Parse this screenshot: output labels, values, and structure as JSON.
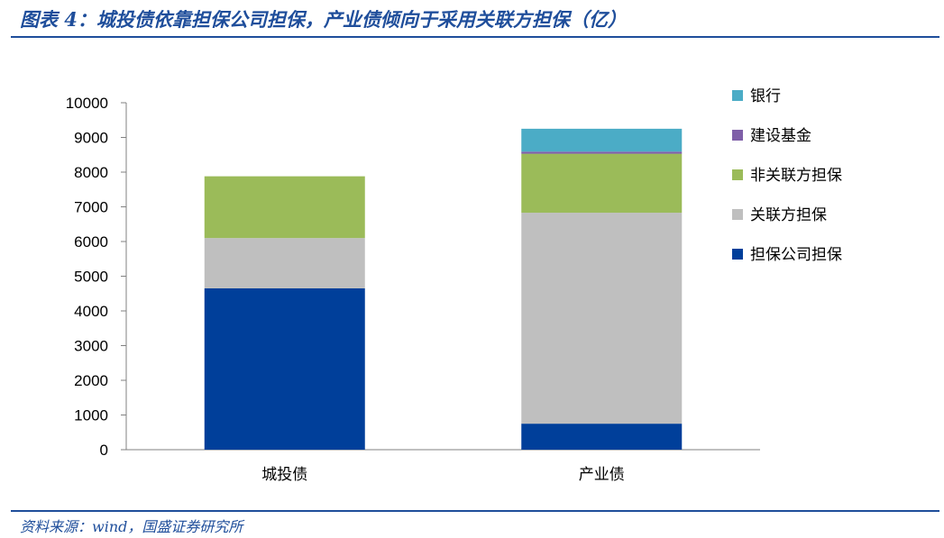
{
  "figure_title": "图表 4：城投债依靠担保公司担保，产业债倾向于采用关联方担保（亿）",
  "source_note": "资料来源：wind，国盛证券研究所",
  "chart_data": {
    "type": "bar",
    "stacked": true,
    "categories": [
      "城投债",
      "产业债"
    ],
    "ylim": [
      0,
      10000
    ],
    "yticks": [
      0,
      1000,
      2000,
      3000,
      4000,
      5000,
      6000,
      7000,
      8000,
      9000,
      10000
    ],
    "legend_position": "right",
    "grid": false,
    "series": [
      {
        "name": "担保公司担保",
        "color": "#003f9a",
        "values": [
          4650,
          750
        ]
      },
      {
        "name": "关联方担保",
        "color": "#bfbfbf",
        "values": [
          1450,
          6080
        ]
      },
      {
        "name": "非关联方担保",
        "color": "#9bbb59",
        "values": [
          1780,
          1700
        ]
      },
      {
        "name": "建设基金",
        "color": "#7f5fa8",
        "values": [
          0,
          60
        ]
      },
      {
        "name": "银行",
        "color": "#4bacc6",
        "values": [
          0,
          660
        ]
      }
    ]
  }
}
